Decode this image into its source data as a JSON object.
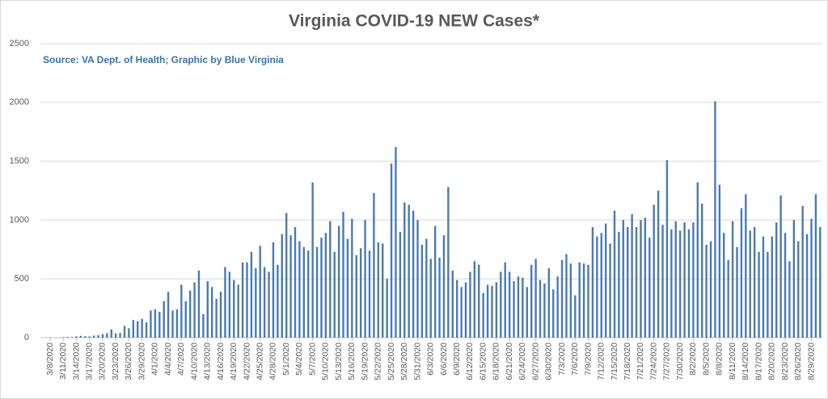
{
  "chart_data": {
    "type": "bar",
    "title": "Virginia COVID-19 NEW Cases*",
    "subtitle": "Source: VA Dept. of Health; Graphic by Blue Virginia",
    "color": "#4a7ab0",
    "grid": true,
    "ylim": [
      0,
      2500
    ],
    "yticks": [
      0,
      500,
      1000,
      1500,
      2000,
      2500
    ],
    "categories": [
      "3/8/2020",
      null,
      null,
      "3/11/2020",
      null,
      null,
      "3/14/2020",
      null,
      null,
      "3/17/2020",
      null,
      null,
      "3/20/2020",
      null,
      null,
      "3/23/2020",
      null,
      null,
      "3/26/2020",
      null,
      null,
      "3/29/2020",
      null,
      null,
      "4/1/2020",
      null,
      null,
      "4/4/2020",
      null,
      null,
      "4/7/2020",
      null,
      null,
      "4/10/2020",
      null,
      null,
      "4/13/2020",
      null,
      null,
      "4/16/2020",
      null,
      null,
      "4/19/2020",
      null,
      null,
      "4/22/2020",
      null,
      null,
      "4/25/2020",
      null,
      null,
      "4/28/2020",
      null,
      null,
      "5/1/2020",
      null,
      null,
      "5/4/2020",
      null,
      null,
      "5/7/2020",
      null,
      null,
      "5/10/2020",
      null,
      null,
      "5/13/2020",
      null,
      null,
      "5/16/2020",
      null,
      null,
      "5/19/2020",
      null,
      null,
      "5/22/2020",
      null,
      null,
      "5/25/2020",
      null,
      null,
      "5/28/2020",
      null,
      null,
      "5/31/2020",
      null,
      null,
      "6/3/2020",
      null,
      null,
      "6/6/2020",
      null,
      null,
      "6/9/2020",
      null,
      null,
      "6/12/2020",
      null,
      null,
      "6/15/2020",
      null,
      null,
      "6/18/2020",
      null,
      null,
      "6/21/2020",
      null,
      null,
      "6/24/2020",
      null,
      null,
      "6/27/2020",
      null,
      null,
      "6/30/2020",
      null,
      null,
      "7/3/2020",
      null,
      null,
      "7/6/2020",
      null,
      null,
      "7/9/2020",
      null,
      null,
      "7/12/2020",
      null,
      null,
      "7/15/2020",
      null,
      null,
      "7/18/2020",
      null,
      null,
      "7/21/2020",
      null,
      null,
      "7/24/2020",
      null,
      null,
      "7/27/2020",
      null,
      null,
      "7/30/2020",
      null,
      null,
      "8/2/2020",
      null,
      null,
      "8/5/2020",
      null,
      null,
      "8/8/2020",
      null,
      null,
      "8/11/2020",
      null,
      null,
      "8/14/2020",
      null,
      null,
      "8/17/2020",
      null,
      null,
      "8/20/2020",
      null,
      null,
      "8/23/2020",
      null,
      null,
      "8/26/2020",
      null,
      null,
      "8/29/2020",
      null,
      null
    ],
    "values": [
      2,
      0,
      1,
      4,
      6,
      5,
      11,
      15,
      12,
      10,
      17,
      20,
      30,
      38,
      70,
      35,
      40,
      100,
      80,
      150,
      140,
      160,
      130,
      230,
      240,
      220,
      310,
      390,
      230,
      240,
      450,
      310,
      400,
      470,
      570,
      200,
      480,
      430,
      330,
      390,
      600,
      560,
      490,
      450,
      640,
      640,
      730,
      590,
      780,
      600,
      560,
      810,
      620,
      880,
      1060,
      870,
      940,
      820,
      770,
      740,
      1320,
      770,
      850,
      890,
      990,
      730,
      950,
      1070,
      840,
      1010,
      700,
      760,
      1000,
      740,
      1230,
      810,
      800,
      500,
      1480,
      1620,
      900,
      1150,
      1130,
      1080,
      1000,
      790,
      840,
      670,
      950,
      680,
      870,
      1280,
      570,
      490,
      430,
      470,
      560,
      650,
      620,
      380,
      450,
      440,
      470,
      560,
      640,
      560,
      480,
      520,
      510,
      430,
      620,
      670,
      490,
      460,
      590,
      410,
      520,
      660,
      710,
      630,
      360,
      640,
      630,
      620,
      940,
      860,
      890,
      970,
      800,
      1080,
      900,
      1000,
      940,
      1050,
      940,
      1000,
      1020,
      850,
      1130,
      1250,
      960,
      1510,
      920,
      990,
      910,
      980,
      920,
      980,
      1320,
      1140,
      790,
      820,
      2010,
      1300,
      890,
      660,
      990,
      770,
      1100,
      1220,
      910,
      940,
      730,
      860,
      730,
      860,
      980,
      1210,
      890,
      650,
      1000,
      820,
      1120,
      880,
      1010,
      1220,
      940
    ]
  }
}
